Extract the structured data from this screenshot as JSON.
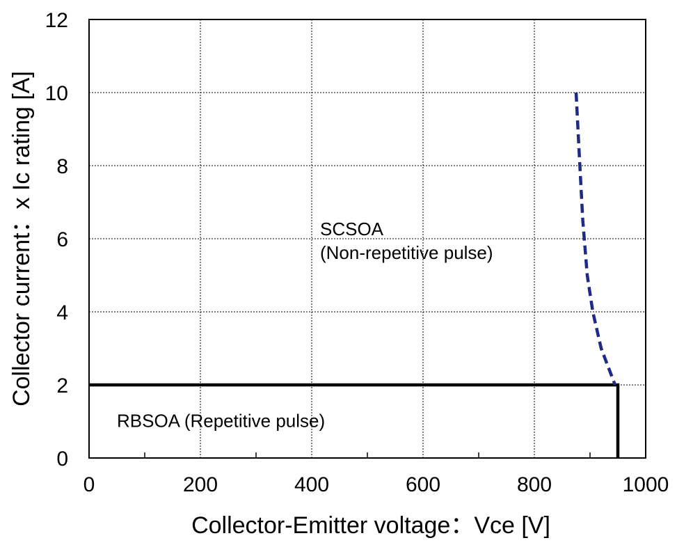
{
  "chart_data": {
    "type": "line",
    "title": "",
    "xlabel": "Collector-Emitter voltage：Vce [V]",
    "ylabel": "Collector current：x Ic rating [A]",
    "xlim": [
      0,
      1000
    ],
    "ylim": [
      0,
      12
    ],
    "x_ticks": [
      0,
      200,
      400,
      600,
      800,
      1000
    ],
    "y_ticks": [
      0,
      2,
      4,
      6,
      8,
      10,
      12
    ],
    "x_ticks_minor": [
      100,
      300,
      500,
      700,
      900
    ],
    "grid": true,
    "series": [
      {
        "style": "solid",
        "color": "#000000",
        "x": [
          0,
          950,
          950
        ],
        "y": [
          2,
          2,
          0
        ]
      },
      {
        "style": "dashed",
        "color": "#1f2a86",
        "x": [
          875,
          880,
          887,
          895,
          905,
          920,
          945
        ],
        "y": [
          10,
          8.5,
          6.5,
          5,
          4,
          3,
          2
        ]
      }
    ],
    "annotations": [
      {
        "lines": [
          "SCSOA",
          "(Non-repetitive pulse)"
        ],
        "x": 415,
        "y": 6.1
      },
      {
        "lines": [
          "RBSOA (Repetitive pulse)"
        ],
        "x": 50,
        "y": 0.85
      }
    ]
  }
}
